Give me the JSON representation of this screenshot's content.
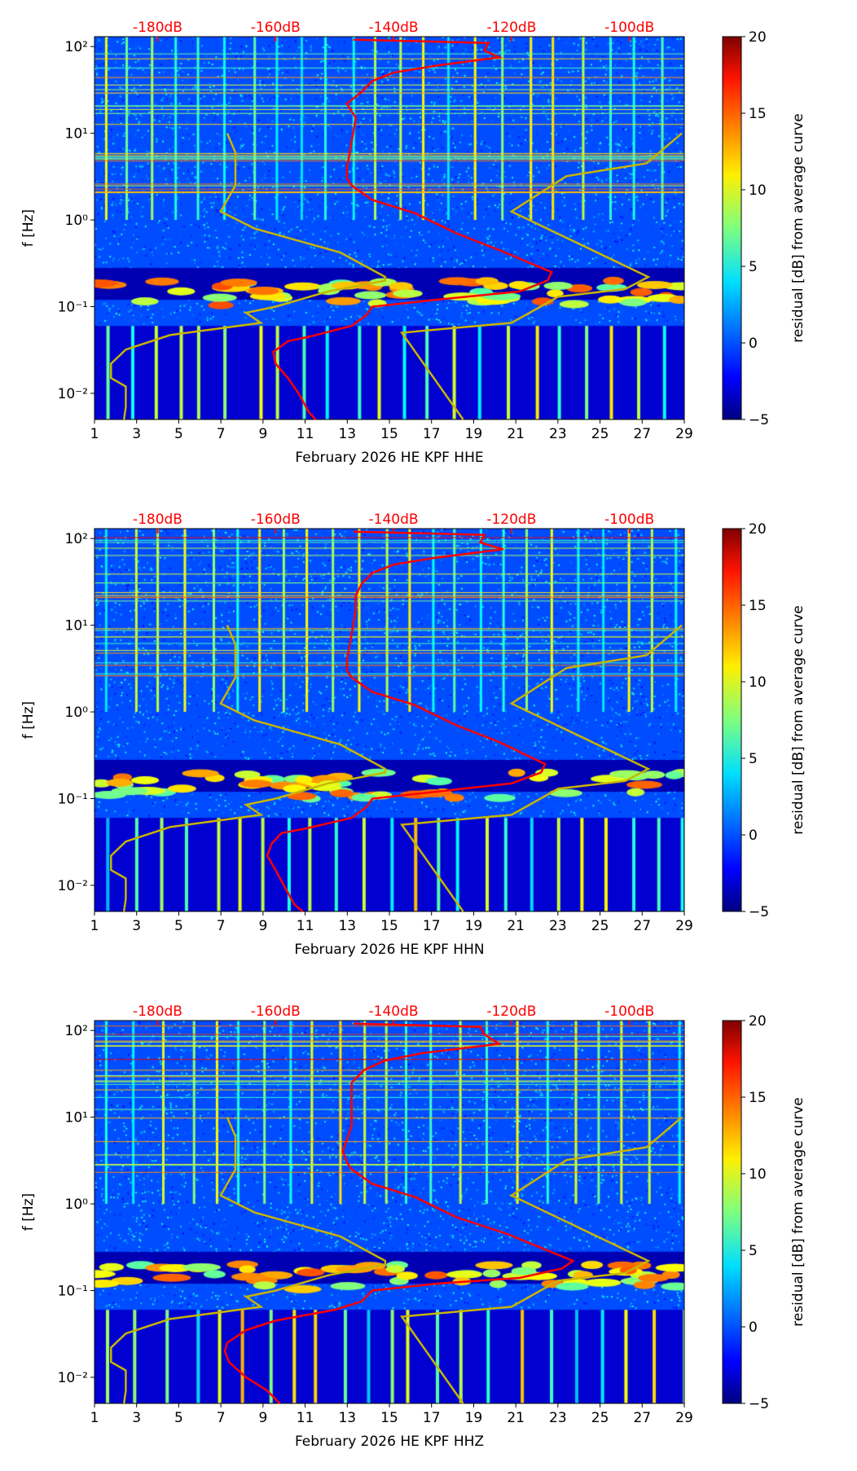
{
  "chart_data": [
    {
      "type": "heatmap",
      "title": "",
      "xlabel": "February 2026 HE KPF  HHE",
      "ylabel": "f [Hz]",
      "xlim": [
        1,
        29
      ],
      "xticks": [
        1,
        3,
        5,
        7,
        9,
        11,
        13,
        15,
        17,
        19,
        21,
        23,
        25,
        27,
        29
      ],
      "ylim": [
        0.005,
        130
      ],
      "yscale": "log",
      "yticks": [
        {
          "v": 0.01,
          "l": "10⁻²"
        },
        {
          "v": 0.1,
          "l": "10⁻¹"
        },
        {
          "v": 1,
          "l": "10⁰"
        },
        {
          "v": 10,
          "l": "10¹"
        },
        {
          "v": 100,
          "l": "10²"
        }
      ],
      "top_axis": {
        "ticks": [
          {
            "v": -180,
            "l": "-180dB"
          },
          {
            "v": -160,
            "l": "-160dB"
          },
          {
            "v": -140,
            "l": "-140dB"
          },
          {
            "v": -120,
            "l": "-120dB"
          },
          {
            "v": -100,
            "l": "-100dB"
          }
        ],
        "range_db": [
          -190.7,
          -90.7
        ]
      },
      "colorbar": {
        "label": "residual [dB] from average curve",
        "range": [
          -5,
          20
        ],
        "ticks": [
          "−5",
          "0",
          "5",
          "10",
          "15",
          "20"
        ]
      },
      "psd_curve_db": [
        [
          -146.8,
          120
        ],
        [
          -123.9,
          110
        ],
        [
          -124.6,
          90
        ],
        [
          -122.1,
          75
        ],
        [
          -132.9,
          60
        ],
        [
          -140,
          50
        ],
        [
          -143.6,
          40
        ],
        [
          -145.4,
          30
        ],
        [
          -147.9,
          22
        ],
        [
          -146.4,
          15
        ],
        [
          -147.1,
          8
        ],
        [
          -147.9,
          4
        ],
        [
          -147.9,
          3
        ],
        [
          -147.1,
          2.5
        ],
        [
          -143.6,
          1.7
        ],
        [
          -136.4,
          1.2
        ],
        [
          -129.3,
          0.7
        ],
        [
          -122.1,
          0.45
        ],
        [
          -113.2,
          0.25
        ],
        [
          -113.9,
          0.2
        ],
        [
          -118.6,
          0.15
        ],
        [
          -132.9,
          0.12
        ],
        [
          -143.6,
          0.1
        ],
        [
          -144.6,
          0.08
        ],
        [
          -147.1,
          0.06
        ],
        [
          -154.3,
          0.045
        ],
        [
          -157.9,
          0.04
        ],
        [
          -160.4,
          0.03
        ],
        [
          -160,
          0.022
        ],
        [
          -157.9,
          0.015
        ],
        [
          -156.1,
          0.01
        ],
        [
          -154.3,
          0.006
        ],
        [
          -153.2,
          0.005
        ]
      ]
    },
    {
      "type": "heatmap",
      "title": "",
      "xlabel": "February 2026 HE KPF  HHN",
      "ylabel": "f [Hz]",
      "xlim": [
        1,
        29
      ],
      "xticks": [
        1,
        3,
        5,
        7,
        9,
        11,
        13,
        15,
        17,
        19,
        21,
        23,
        25,
        27,
        29
      ],
      "ylim": [
        0.005,
        130
      ],
      "yscale": "log",
      "yticks": [
        {
          "v": 0.01,
          "l": "10⁻²"
        },
        {
          "v": 0.1,
          "l": "10⁻¹"
        },
        {
          "v": 1,
          "l": "10⁰"
        },
        {
          "v": 10,
          "l": "10¹"
        },
        {
          "v": 100,
          "l": "10²"
        }
      ],
      "top_axis": {
        "ticks": [
          {
            "v": -180,
            "l": "-180dB"
          },
          {
            "v": -160,
            "l": "-160dB"
          },
          {
            "v": -140,
            "l": "-140dB"
          },
          {
            "v": -120,
            "l": "-120dB"
          },
          {
            "v": -100,
            "l": "-100dB"
          }
        ],
        "range_db": [
          -190.7,
          -90.7
        ]
      },
      "colorbar": {
        "label": "residual [dB] from average curve",
        "range": [
          -5,
          20
        ],
        "ticks": [
          "−5",
          "0",
          "5",
          "10",
          "15",
          "20"
        ]
      },
      "psd_curve_db": [
        [
          -146.8,
          120
        ],
        [
          -124.6,
          110
        ],
        [
          -125.3,
          90
        ],
        [
          -121.4,
          75
        ],
        [
          -132.9,
          60
        ],
        [
          -140,
          50
        ],
        [
          -143.6,
          40
        ],
        [
          -145.4,
          30
        ],
        [
          -146.4,
          22
        ],
        [
          -146.4,
          15
        ],
        [
          -147.1,
          8
        ],
        [
          -147.9,
          4
        ],
        [
          -147.9,
          3
        ],
        [
          -147.1,
          2.5
        ],
        [
          -143.6,
          1.7
        ],
        [
          -136.4,
          1.2
        ],
        [
          -129.3,
          0.7
        ],
        [
          -122.1,
          0.45
        ],
        [
          -114.3,
          0.25
        ],
        [
          -115,
          0.2
        ],
        [
          -120,
          0.15
        ],
        [
          -132.9,
          0.12
        ],
        [
          -143.6,
          0.1
        ],
        [
          -144.6,
          0.08
        ],
        [
          -147.1,
          0.06
        ],
        [
          -155,
          0.045
        ],
        [
          -159,
          0.04
        ],
        [
          -160.7,
          0.03
        ],
        [
          -161.4,
          0.022
        ],
        [
          -160,
          0.015
        ],
        [
          -158.6,
          0.01
        ],
        [
          -156.8,
          0.006
        ],
        [
          -155.4,
          0.005
        ]
      ]
    },
    {
      "type": "heatmap",
      "title": "",
      "xlabel": "February 2026 HE KPF  HHZ",
      "ylabel": "f [Hz]",
      "xlim": [
        1,
        29
      ],
      "xticks": [
        1,
        3,
        5,
        7,
        9,
        11,
        13,
        15,
        17,
        19,
        21,
        23,
        25,
        27,
        29
      ],
      "ylim": [
        0.005,
        130
      ],
      "yscale": "log",
      "yticks": [
        {
          "v": 0.01,
          "l": "10⁻²"
        },
        {
          "v": 0.1,
          "l": "10⁻¹"
        },
        {
          "v": 1,
          "l": "10⁰"
        },
        {
          "v": 10,
          "l": "10¹"
        },
        {
          "v": 100,
          "l": "10²"
        }
      ],
      "top_axis": {
        "ticks": [
          {
            "v": -180,
            "l": "-180dB"
          },
          {
            "v": -160,
            "l": "-160dB"
          },
          {
            "v": -140,
            "l": "-140dB"
          },
          {
            "v": -120,
            "l": "-120dB"
          },
          {
            "v": -100,
            "l": "-100dB"
          }
        ],
        "range_db": [
          -190.7,
          -90.7
        ]
      },
      "colorbar": {
        "label": "residual [dB] from average curve",
        "range": [
          -5,
          20
        ],
        "ticks": [
          "−5",
          "0",
          "5",
          "10",
          "15",
          "20"
        ]
      },
      "psd_curve_db": [
        [
          -146.8,
          120
        ],
        [
          -125.3,
          110
        ],
        [
          -124.6,
          90
        ],
        [
          -122.1,
          70
        ],
        [
          -135,
          55
        ],
        [
          -141.4,
          45
        ],
        [
          -145,
          35
        ],
        [
          -147.1,
          25
        ],
        [
          -147.1,
          15
        ],
        [
          -147.1,
          8
        ],
        [
          -148.6,
          4
        ],
        [
          -147.9,
          3
        ],
        [
          -147.1,
          2.5
        ],
        [
          -143.6,
          1.7
        ],
        [
          -136.4,
          1.2
        ],
        [
          -129.3,
          0.7
        ],
        [
          -120.7,
          0.45
        ],
        [
          -109.6,
          0.22
        ],
        [
          -111.4,
          0.18
        ],
        [
          -118.6,
          0.14
        ],
        [
          -132.9,
          0.12
        ],
        [
          -143.6,
          0.1
        ],
        [
          -145.4,
          0.075
        ],
        [
          -150,
          0.06
        ],
        [
          -160,
          0.045
        ],
        [
          -165,
          0.035
        ],
        [
          -168.2,
          0.025
        ],
        [
          -168.6,
          0.02
        ],
        [
          -167.9,
          0.015
        ],
        [
          -165,
          0.01
        ],
        [
          -161.4,
          0.007
        ],
        [
          -159.3,
          0.005
        ]
      ]
    }
  ],
  "noise_models": {
    "low_db": [
      [
        -168.2,
        10
      ],
      [
        -166.8,
        6
      ],
      [
        -166.8,
        2.5
      ],
      [
        -169.3,
        1.25
      ],
      [
        -163.6,
        0.8
      ],
      [
        -149,
        0.42
      ],
      [
        -141.4,
        0.22
      ],
      [
        -141.4,
        0.2
      ],
      [
        -151.1,
        0.15
      ],
      [
        -160,
        0.1
      ],
      [
        -165,
        0.085
      ],
      [
        -162.5,
        0.065
      ],
      [
        -177.9,
        0.047
      ],
      [
        -185.4,
        0.032
      ],
      [
        -187.9,
        0.022
      ],
      [
        -187.9,
        0.015
      ],
      [
        -185.4,
        0.012
      ],
      [
        -185.4,
        0.007
      ],
      [
        -185.7,
        0.005
      ]
    ],
    "high_db": [
      [
        -91.1,
        10
      ],
      [
        -97.1,
        4.5
      ],
      [
        -110.7,
        3.2
      ],
      [
        -120,
        1.25
      ],
      [
        -96.8,
        0.22
      ],
      [
        -100.7,
        0.16
      ],
      [
        -112.1,
        0.13
      ],
      [
        -120,
        0.065
      ],
      [
        -138.6,
        0.05
      ],
      [
        -128.2,
        0.005
      ]
    ]
  },
  "colors": {
    "psd": "#ff0000",
    "noise_model": "#c8b400",
    "top_axis": "#ff0000"
  }
}
